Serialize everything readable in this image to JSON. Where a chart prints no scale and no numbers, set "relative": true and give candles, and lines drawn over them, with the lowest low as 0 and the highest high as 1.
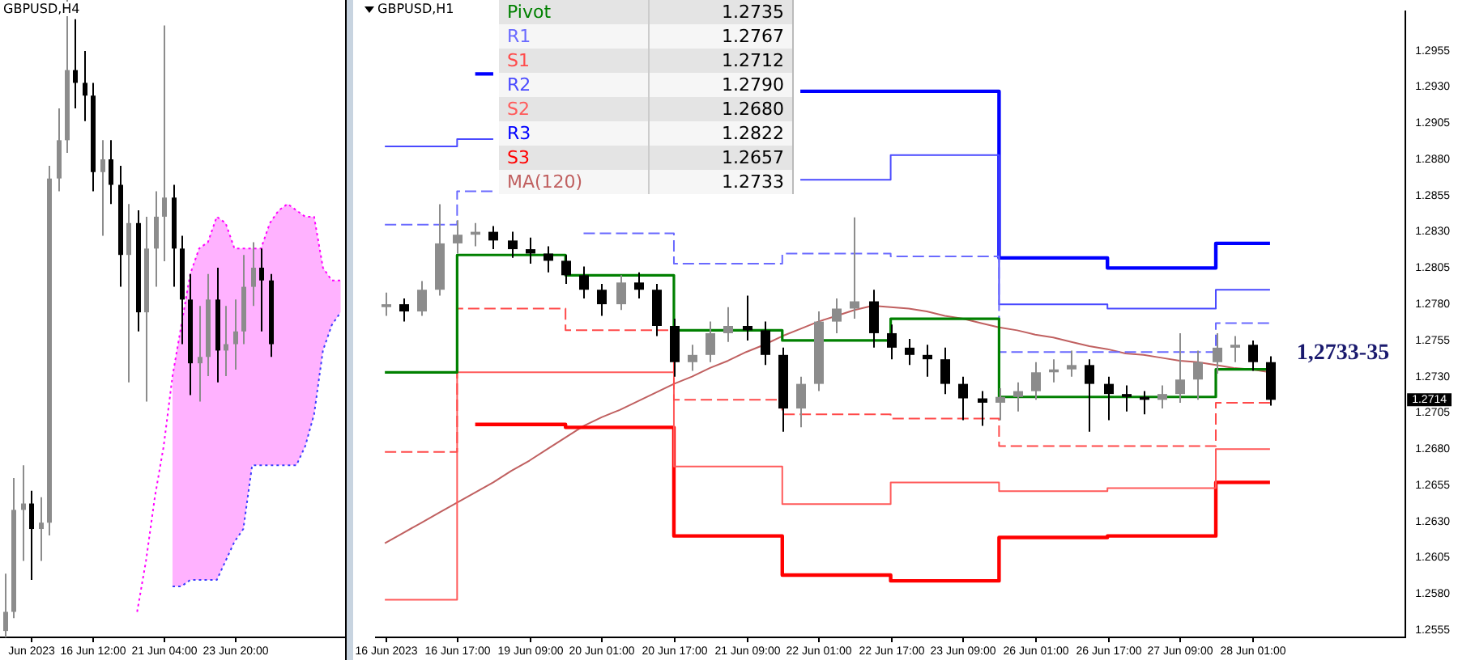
{
  "chart_data": [
    {
      "type": "candlestick",
      "title": "GBPUSD,H4",
      "relative": true,
      "tick_labels": "x",
      "colors": [
        "#8c8c8c",
        "#8c8c8c",
        "#8c8c8c",
        "#000000",
        "#8c8c8c",
        "#8c8c8c",
        "#8c8c8c",
        "#8c8c8c",
        "#000000",
        "#000000",
        "#000000",
        "#8c8c8c",
        "#000000",
        "#000000",
        "#8c8c8c",
        "#000000",
        "#8c8c8c",
        "#8c8c8c",
        "#8c8c8c",
        "#000000",
        "#000000",
        "#000000",
        "#8c8c8c",
        "#8c8c8c",
        "#000000",
        "#8c8c8c",
        "#8c8c8c",
        "#8c8c8c",
        "#8c8c8c",
        "#000000",
        "#000000",
        null,
        null,
        null,
        null,
        null,
        null,
        null,
        null
      ],
      "categories": [
        null,
        null,
        null,
        "Jun 2023",
        null,
        null,
        null,
        null,
        null,
        null,
        "16 Jun 12:00",
        null,
        null,
        null,
        null,
        null,
        null,
        null,
        "21 Jun 04:00",
        null,
        null,
        null,
        null,
        null,
        null,
        null,
        "23 Jun 20:00",
        null,
        null,
        null,
        null,
        null,
        null,
        null,
        null,
        null,
        null,
        null,
        null
      ],
      "ohlc": [
        [
          0.01,
          0.1,
          0.0,
          0.04
        ],
        [
          0.04,
          0.25,
          0.03,
          0.2
        ],
        [
          0.2,
          0.27,
          0.12,
          0.21
        ],
        [
          0.21,
          0.23,
          0.09,
          0.17
        ],
        [
          0.17,
          0.22,
          0.12,
          0.18
        ],
        [
          0.18,
          0.74,
          0.16,
          0.72
        ],
        [
          0.72,
          0.83,
          0.7,
          0.78
        ],
        [
          0.78,
          1.0,
          0.76,
          0.89
        ],
        [
          0.89,
          0.97,
          0.83,
          0.87
        ],
        [
          0.87,
          0.92,
          0.81,
          0.85
        ],
        [
          0.85,
          0.87,
          0.7,
          0.73
        ],
        [
          0.73,
          0.78,
          0.63,
          0.75
        ],
        [
          0.75,
          0.78,
          0.68,
          0.71
        ],
        [
          0.71,
          0.74,
          0.55,
          0.6
        ],
        [
          0.6,
          0.68,
          0.4,
          0.65
        ],
        [
          0.65,
          0.67,
          0.48,
          0.51
        ],
        [
          0.51,
          0.66,
          0.37,
          0.61
        ],
        [
          0.61,
          0.7,
          0.55,
          0.66
        ],
        [
          0.66,
          0.96,
          0.59,
          0.69
        ],
        [
          0.69,
          0.71,
          0.55,
          0.61
        ],
        [
          0.61,
          0.63,
          0.46,
          0.53
        ],
        [
          0.53,
          0.57,
          0.38,
          0.43
        ],
        [
          0.43,
          0.52,
          0.37,
          0.44
        ],
        [
          0.44,
          0.57,
          0.41,
          0.53
        ],
        [
          0.53,
          0.58,
          0.4,
          0.45
        ],
        [
          0.45,
          0.52,
          0.41,
          0.46
        ],
        [
          0.46,
          0.53,
          0.42,
          0.48
        ],
        [
          0.48,
          0.6,
          0.46,
          0.55
        ],
        [
          0.55,
          0.62,
          0.52,
          0.58
        ],
        [
          0.58,
          0.61,
          0.48,
          0.56
        ],
        [
          0.56,
          0.57,
          0.44,
          0.46
        ],
        null,
        null,
        null,
        null,
        null,
        null,
        null,
        null
      ],
      "series": [
        {
          "type": "line",
          "color": "#ff00ff",
          "line_style": "dotted",
          "values": [
            null,
            null,
            null,
            null,
            null,
            null,
            null,
            null,
            null,
            null,
            null,
            null,
            null,
            null,
            null,
            0.04,
            0.12,
            0.22,
            0.3,
            0.41,
            0.49,
            0.57,
            0.61,
            0.62,
            0.66,
            0.65,
            0.61,
            0.61,
            0.61,
            0.61,
            0.65,
            0.67,
            0.68,
            0.67,
            0.66,
            0.66,
            0.58,
            0.56,
            0.56
          ],
          "upper": [
            null,
            null,
            null,
            null,
            null,
            null,
            null,
            null,
            null,
            null,
            null,
            null,
            null,
            null,
            null,
            null,
            null,
            null,
            null,
            0.41,
            0.49,
            0.57,
            0.61,
            0.62,
            0.66,
            0.65,
            0.61,
            0.61,
            0.61,
            0.61,
            0.65,
            0.67,
            0.68,
            0.67,
            0.66,
            0.66,
            0.58,
            0.56,
            0.56
          ],
          "lower": [
            null,
            null,
            null,
            null,
            null,
            null,
            null,
            null,
            null,
            null,
            null,
            null,
            null,
            null,
            null,
            null,
            null,
            null,
            null,
            0.08,
            0.08,
            0.09,
            0.09,
            0.09,
            0.09,
            0.12,
            0.15,
            0.17,
            0.27,
            0.27,
            0.27,
            0.27,
            0.27,
            0.27,
            0.3,
            0.35,
            0.45,
            0.49,
            0.51
          ]
        },
        {
          "type": "line",
          "color": "#3c3cff",
          "line_style": "dotted",
          "values": [
            null,
            null,
            null,
            null,
            null,
            null,
            null,
            null,
            null,
            null,
            null,
            null,
            null,
            null,
            null,
            null,
            null,
            null,
            null,
            0.08,
            0.08,
            0.09,
            0.09,
            0.09,
            0.09,
            0.12,
            0.15,
            0.17,
            0.27,
            0.27,
            0.27,
            0.27,
            0.27,
            0.27,
            0.3,
            0.35,
            0.45,
            0.49,
            0.51
          ]
        }
      ]
    },
    {
      "type": "candlestick",
      "title": "GBPUSD,H1",
      "colors": [
        "#8c8c8c",
        "#000000",
        "#8c8c8c",
        "#8c8c8c",
        "#8c8c8c",
        "#8c8c8c",
        "#000000",
        "#000000",
        "#000000",
        "#000000",
        "#000000",
        "#000000",
        "#000000",
        "#8c8c8c",
        "#000000",
        "#000000",
        "#000000",
        "#8c8c8c",
        "#8c8c8c",
        "#8c8c8c",
        "#000000",
        "#000000",
        "#000000",
        "#8c8c8c",
        "#8c8c8c",
        "#8c8c8c",
        "#8c8c8c",
        "#000000",
        "#000000",
        "#000000",
        "#000000",
        "#000000",
        "#000000",
        "#000000",
        "#8c8c8c",
        "#8c8c8c",
        "#8c8c8c",
        "#8c8c8c",
        "#8c8c8c",
        "#000000",
        "#000000",
        "#000000",
        "#000000",
        "#8c8c8c",
        "#8c8c8c",
        "#8c8c8c",
        "#8c8c8c",
        "#8c8c8c",
        "#000000",
        "#000000",
        null,
        null,
        null,
        null,
        null,
        null,
        null
      ],
      "categories": [
        "16 Jun 2023",
        null,
        null,
        null,
        "16 Jun 17:00",
        null,
        null,
        null,
        "19 Jun 09:00",
        null,
        null,
        null,
        "20 Jun 01:00",
        null,
        null,
        null,
        "20 Jun 17:00",
        null,
        null,
        null,
        "21 Jun 09:00",
        null,
        null,
        null,
        "22 Jun 01:00",
        null,
        null,
        null,
        "22 Jun 17:00",
        null,
        null,
        null,
        "23 Jun 09:00",
        null,
        null,
        null,
        "26 Jun 01:00",
        null,
        null,
        null,
        "26 Jun 17:00",
        null,
        null,
        null,
        "27 Jun 09:00",
        null,
        null,
        null,
        "28 Jun 01:00",
        null,
        null,
        null,
        null,
        null,
        null,
        null,
        null
      ],
      "ylim": [
        1.255,
        1.2982
      ],
      "yticks": [
        {
          "value": 1.2555,
          "label": "1.2555"
        },
        {
          "value": 1.258,
          "label": "1.2580"
        },
        {
          "value": 1.2605,
          "label": "1.2605"
        },
        {
          "value": 1.263,
          "label": "1.2630"
        },
        {
          "value": 1.2655,
          "label": "1.2655"
        },
        {
          "value": 1.268,
          "label": "1.2680"
        },
        {
          "value": 1.2705,
          "label": "1.2705"
        },
        {
          "value": 1.273,
          "label": "1.2730"
        },
        {
          "value": 1.2755,
          "label": "1.2755"
        },
        {
          "value": 1.278,
          "label": "1.2780"
        },
        {
          "value": 1.2805,
          "label": "1.2805"
        },
        {
          "value": 1.283,
          "label": "1.2830"
        },
        {
          "value": 1.2855,
          "label": "1.2855"
        },
        {
          "value": 1.288,
          "label": "1.2880"
        },
        {
          "value": 1.2905,
          "label": "1.2905"
        },
        {
          "value": 1.293,
          "label": "1.2930"
        },
        {
          "value": 1.2955,
          "label": "1.2955"
        }
      ],
      "ohlc": [
        [
          1.2778,
          1.2788,
          1.2772,
          1.278
        ],
        [
          1.278,
          1.2784,
          1.2768,
          1.2775
        ],
        [
          1.2775,
          1.2796,
          1.2772,
          1.279
        ],
        [
          1.279,
          1.2849,
          1.2786,
          1.2822
        ],
        [
          1.2822,
          1.2838,
          1.2815,
          1.2828
        ],
        [
          1.2828,
          1.2836,
          1.282,
          1.283
        ],
        [
          1.283,
          1.2834,
          1.2818,
          1.2824
        ],
        [
          1.2824,
          1.283,
          1.2812,
          1.2818
        ],
        [
          1.2818,
          1.2826,
          1.2808,
          1.2815
        ],
        [
          1.2815,
          1.282,
          1.2802,
          1.281
        ],
        [
          1.281,
          1.2814,
          1.2794,
          1.28
        ],
        [
          1.28,
          1.2806,
          1.2784,
          1.279
        ],
        [
          1.279,
          1.2794,
          1.2772,
          1.278
        ],
        [
          1.278,
          1.28,
          1.2776,
          1.2795
        ],
        [
          1.2795,
          1.2802,
          1.2784,
          1.279
        ],
        [
          1.279,
          1.2794,
          1.2758,
          1.2765
        ],
        [
          1.2765,
          1.277,
          1.273,
          1.274
        ],
        [
          1.274,
          1.2752,
          1.2734,
          1.2745
        ],
        [
          1.2745,
          1.2768,
          1.274,
          1.276
        ],
        [
          1.276,
          1.2778,
          1.2754,
          1.2765
        ],
        [
          1.2765,
          1.2786,
          1.2755,
          1.2762
        ],
        [
          1.2762,
          1.2768,
          1.2738,
          1.2745
        ],
        [
          1.2745,
          1.275,
          1.2692,
          1.2708
        ],
        [
          1.2708,
          1.273,
          1.2695,
          1.2725
        ],
        [
          1.2725,
          1.2775,
          1.272,
          1.2768
        ],
        [
          1.2768,
          1.2784,
          1.276,
          1.2777
        ],
        [
          1.2777,
          1.284,
          1.277,
          1.2782
        ],
        [
          1.2782,
          1.279,
          1.275,
          1.276
        ],
        [
          1.276,
          1.2766,
          1.2742,
          1.275
        ],
        [
          1.275,
          1.2756,
          1.2738,
          1.2745
        ],
        [
          1.2745,
          1.2752,
          1.273,
          1.2742
        ],
        [
          1.2742,
          1.275,
          1.2718,
          1.2725
        ],
        [
          1.2725,
          1.273,
          1.27,
          1.2715
        ],
        [
          1.2715,
          1.272,
          1.2696,
          1.2712
        ],
        [
          1.2712,
          1.2722,
          1.27,
          1.2716
        ],
        [
          1.2716,
          1.2726,
          1.2706,
          1.272
        ],
        [
          1.272,
          1.274,
          1.2714,
          1.2733
        ],
        [
          1.2733,
          1.2742,
          1.2726,
          1.2735
        ],
        [
          1.2735,
          1.2748,
          1.273,
          1.2738
        ],
        [
          1.2738,
          1.2742,
          1.2692,
          1.2725
        ],
        [
          1.2725,
          1.273,
          1.27,
          1.2718
        ],
        [
          1.2718,
          1.2724,
          1.2706,
          1.2716
        ],
        [
          1.2716,
          1.272,
          1.2704,
          1.2714
        ],
        [
          1.2714,
          1.2724,
          1.2708,
          1.2718
        ],
        [
          1.2718,
          1.276,
          1.2712,
          1.2728
        ],
        [
          1.2728,
          1.2748,
          1.2714,
          1.274
        ],
        [
          1.274,
          1.276,
          1.2732,
          1.275
        ],
        [
          1.275,
          1.2758,
          1.274,
          1.2752
        ],
        [
          1.2752,
          1.2755,
          1.2734,
          1.274
        ],
        [
          1.274,
          1.2744,
          1.271,
          1.2714
        ],
        null,
        null,
        null,
        null,
        null,
        null,
        null
      ],
      "series": [
        {
          "name": "Pivot",
          "type": "step",
          "color": "#008000",
          "values": [
            1.2733,
            1.2733,
            1.2733,
            1.2733,
            1.2733,
            1.2814,
            1.2814,
            1.2814,
            1.2814,
            1.2814,
            1.2814,
            1.28,
            1.28,
            1.28,
            1.28,
            1.28,
            1.28,
            1.2762,
            1.2762,
            1.2762,
            1.2762,
            1.2762,
            1.2762,
            1.2755,
            1.2755,
            1.2755,
            1.2755,
            1.2755,
            1.2755,
            1.277,
            1.277,
            1.277,
            1.277,
            1.277,
            1.277,
            1.2716,
            1.2716,
            1.2716,
            1.2716,
            1.2716,
            1.2716,
            1.2716,
            1.2716,
            1.2716,
            1.2716,
            1.2716,
            1.2716,
            1.2735,
            1.2735,
            1.2735,
            null,
            null,
            null,
            null,
            null,
            null,
            null
          ]
        },
        {
          "name": "R1",
          "type": "step",
          "color": "#6a6aff",
          "line_style": "dashed",
          "values": [
            1.2835,
            1.2835,
            1.2835,
            1.2835,
            1.2835,
            1.2858,
            1.2858,
            null,
            null,
            null,
            null,
            1.2829,
            1.2829,
            1.2829,
            1.2829,
            1.2829,
            1.2829,
            1.2808,
            1.2808,
            1.2808,
            1.2808,
            1.2808,
            1.2808,
            1.2815,
            1.2815,
            1.2815,
            1.2815,
            1.2815,
            1.2815,
            1.2813,
            1.2813,
            1.2813,
            1.2813,
            1.2813,
            1.2813,
            1.2747,
            1.2747,
            1.2747,
            1.2747,
            1.2747,
            1.2747,
            1.2747,
            1.2747,
            1.2747,
            1.2747,
            1.2747,
            1.2747,
            1.2767,
            1.2767,
            1.2767,
            null,
            null,
            null,
            null,
            null,
            null,
            null
          ]
        },
        {
          "name": "S1",
          "type": "step",
          "color": "#ff4a4a",
          "line_style": "dashed",
          "values": [
            1.2678,
            1.2678,
            1.2678,
            1.2678,
            1.2678,
            1.2777,
            1.2777,
            1.2777,
            1.2777,
            1.2777,
            1.2777,
            1.2762,
            1.2762,
            1.2762,
            1.2762,
            1.2762,
            1.2762,
            1.2714,
            1.2714,
            1.2714,
            1.2714,
            1.2714,
            1.2714,
            1.2704,
            1.2704,
            1.2704,
            1.2704,
            1.2704,
            1.2704,
            1.2701,
            1.2701,
            1.2701,
            1.2701,
            1.2701,
            1.2701,
            1.2682,
            1.2682,
            1.2682,
            1.2682,
            1.2682,
            1.2682,
            1.2682,
            1.2682,
            1.2682,
            1.2682,
            1.2682,
            1.2682,
            1.2712,
            1.2712,
            1.2712,
            null,
            null,
            null,
            null,
            null,
            null,
            null
          ]
        },
        {
          "name": "R2",
          "type": "step",
          "color": "#4a4aff",
          "values": [
            1.2889,
            1.2889,
            1.2889,
            1.2889,
            1.2889,
            1.2894,
            1.2894,
            null,
            null,
            null,
            null,
            null,
            null,
            null,
            null,
            null,
            null,
            null,
            null,
            null,
            null,
            null,
            null,
            1.2866,
            1.2866,
            1.2866,
            1.2866,
            1.2866,
            1.2866,
            1.2883,
            1.2883,
            1.2883,
            1.2883,
            1.2883,
            1.2883,
            1.278,
            1.278,
            1.278,
            1.278,
            1.278,
            1.278,
            1.2777,
            1.2777,
            1.2777,
            1.2777,
            1.2777,
            1.2777,
            1.279,
            1.279,
            1.279,
            null,
            null,
            null,
            null,
            null,
            null,
            null
          ]
        },
        {
          "name": "S2",
          "type": "step",
          "color": "#ff5a5a",
          "values": [
            1.2576,
            1.2576,
            1.2576,
            1.2576,
            1.2576,
            1.2733,
            1.2733,
            1.2733,
            1.2733,
            1.2733,
            1.2733,
            1.2733,
            1.2733,
            1.2733,
            1.2733,
            1.2733,
            1.2733,
            1.2668,
            1.2668,
            1.2668,
            1.2668,
            1.2668,
            1.2668,
            1.2642,
            1.2642,
            1.2642,
            1.2642,
            1.2642,
            1.2642,
            1.2657,
            1.2657,
            1.2657,
            1.2657,
            1.2657,
            1.2657,
            1.2651,
            1.2651,
            1.2651,
            1.2651,
            1.2651,
            1.2651,
            1.2653,
            1.2653,
            1.2653,
            1.2653,
            1.2653,
            1.2653,
            1.268,
            1.268,
            1.268,
            null,
            null,
            null,
            null,
            null,
            null,
            null
          ]
        },
        {
          "name": "R3",
          "type": "step",
          "color": "#0000ff",
          "values": [
            null,
            null,
            null,
            null,
            null,
            1.2939,
            1.2939,
            null,
            null,
            null,
            null,
            null,
            null,
            null,
            null,
            null,
            null,
            null,
            null,
            null,
            null,
            null,
            null,
            1.2927,
            1.2927,
            1.2927,
            1.2927,
            1.2927,
            1.2927,
            1.2927,
            1.2927,
            1.2927,
            1.2927,
            1.2927,
            1.2927,
            1.2812,
            1.2812,
            1.2812,
            1.2812,
            1.2812,
            1.2812,
            1.2805,
            1.2805,
            1.2805,
            1.2805,
            1.2805,
            1.2805,
            1.2822,
            1.2822,
            1.2822,
            null,
            null,
            null,
            null,
            null,
            null,
            null
          ]
        },
        {
          "name": "S3",
          "type": "step",
          "color": "#ff0000",
          "values": [
            null,
            null,
            null,
            null,
            null,
            1.2697,
            1.2697,
            1.2697,
            1.2697,
            1.2697,
            1.2697,
            1.2695,
            1.2695,
            1.2695,
            1.2695,
            1.2695,
            1.2695,
            1.262,
            1.262,
            1.262,
            1.262,
            1.262,
            1.262,
            1.2593,
            1.2593,
            1.2593,
            1.2593,
            1.2593,
            1.2593,
            1.2589,
            1.2589,
            1.2589,
            1.2589,
            1.2589,
            1.2589,
            1.2619,
            1.2619,
            1.2619,
            1.2619,
            1.2619,
            1.2619,
            1.262,
            1.262,
            1.262,
            1.262,
            1.262,
            1.262,
            1.2657,
            1.2657,
            1.2657,
            null,
            null,
            null,
            null,
            null,
            null,
            null
          ]
        },
        {
          "name": "MA(120)",
          "type": "line",
          "color": "#c06060",
          "values": [
            1.2615,
            1.2622,
            1.2629,
            1.2636,
            1.2643,
            1.265,
            1.2657,
            1.2665,
            1.2672,
            1.268,
            1.2688,
            1.2696,
            1.2702,
            1.2707,
            1.2713,
            1.2719,
            1.2725,
            1.273,
            1.2736,
            1.2741,
            1.2747,
            1.2752,
            1.2758,
            1.2763,
            1.2768,
            1.2772,
            1.2776,
            1.2779,
            1.2778,
            1.2777,
            1.2775,
            1.2772,
            1.277,
            1.2767,
            1.2764,
            1.2762,
            1.2759,
            1.2757,
            1.2754,
            1.2751,
            1.2749,
            1.2746,
            1.2745,
            1.2743,
            1.2741,
            1.274,
            1.2738,
            1.2736,
            1.2735,
            1.2733,
            null,
            null,
            null,
            null,
            null,
            null,
            null
          ]
        }
      ],
      "annotations": [
        "1,2733-35",
        "1.2714",
        "1.2735",
        "1.2767",
        "1.2712",
        "1.2790",
        "1.2680",
        "1.2822",
        "1.2657",
        "1.2733"
      ]
    }
  ]
}
